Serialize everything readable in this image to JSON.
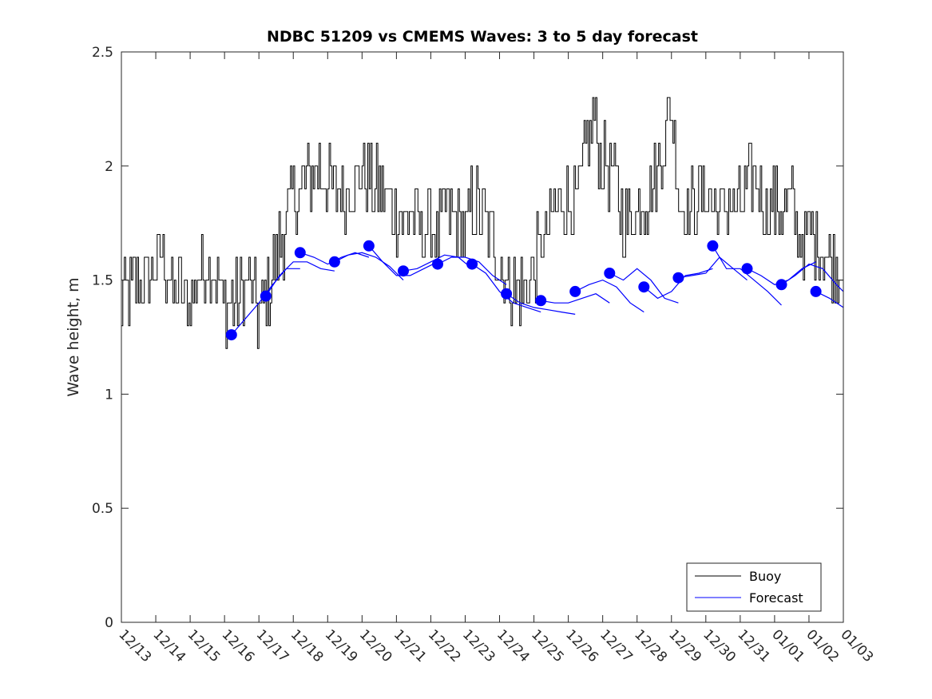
{
  "chart_data": {
    "type": "line",
    "title": "NDBC 51209 vs CMEMS Waves: 3 to 5 day forecast",
    "xlabel": "",
    "ylabel": "Wave height, m",
    "x_tick_labels": [
      "12/13",
      "12/14",
      "12/15",
      "12/16",
      "12/17",
      "12/18",
      "12/19",
      "12/20",
      "12/21",
      "12/22",
      "12/23",
      "12/24",
      "12/25",
      "12/26",
      "12/27",
      "12/28",
      "12/29",
      "12/30",
      "12/31",
      "01/01",
      "01/02",
      "01/03"
    ],
    "xlim": [
      0,
      21
    ],
    "x_units": "days since 12/13",
    "ylim": [
      0,
      2.5
    ],
    "y_ticks": [
      0,
      0.5,
      1,
      1.5,
      2,
      2.5
    ],
    "y_tick_labels": [
      "0",
      "0.5",
      "1",
      "1.5",
      "2",
      "2.5"
    ],
    "legend": {
      "position": "bottom-right",
      "entries": [
        "Buoy",
        "Forecast"
      ]
    },
    "series": [
      {
        "name": "Buoy",
        "color": "#000000",
        "x": [
          0,
          0.25,
          0.5,
          0.75,
          1,
          1.25,
          1.5,
          1.75,
          2,
          2.25,
          2.5,
          2.75,
          3,
          3.25,
          3.5,
          3.75,
          4,
          4.25,
          4.5,
          4.75,
          5,
          5.25,
          5.5,
          5.75,
          6,
          6.25,
          6.5,
          6.75,
          7,
          7.25,
          7.5,
          7.75,
          8,
          8.25,
          8.5,
          8.75,
          9,
          9.25,
          9.5,
          9.75,
          10,
          10.25,
          10.5,
          10.75,
          11,
          11.25,
          11.5,
          11.75,
          12,
          12.25,
          12.5,
          12.75,
          13,
          13.25,
          13.5,
          13.75,
          14,
          14.25,
          14.5,
          14.75,
          15,
          15.25,
          15.5,
          15.75,
          16,
          16.25,
          16.5,
          16.75,
          17,
          17.25,
          17.5,
          17.75,
          18,
          18.25,
          18.5,
          18.75,
          19,
          19.25,
          19.5,
          19.75,
          20,
          20.25,
          20.5,
          20.75,
          21
        ],
        "values": [
          1.4,
          1.45,
          1.5,
          1.5,
          1.55,
          1.6,
          1.45,
          1.45,
          1.4,
          1.5,
          1.6,
          1.55,
          1.4,
          1.4,
          1.45,
          1.5,
          1.35,
          1.4,
          1.6,
          1.7,
          1.85,
          1.9,
          1.95,
          2.0,
          1.95,
          1.85,
          1.9,
          1.9,
          2.0,
          1.95,
          1.9,
          1.85,
          1.8,
          1.75,
          1.8,
          1.7,
          1.75,
          1.7,
          1.8,
          1.75,
          1.7,
          1.85,
          1.8,
          1.7,
          1.6,
          1.5,
          1.45,
          1.45,
          1.55,
          1.65,
          1.75,
          1.85,
          1.85,
          1.8,
          2.05,
          2.2,
          2.0,
          2.0,
          1.85,
          1.75,
          1.8,
          1.85,
          1.9,
          2.05,
          2.3,
          1.9,
          1.8,
          1.85,
          1.9,
          1.85,
          1.8,
          1.85,
          1.8,
          1.9,
          1.95,
          1.8,
          1.85,
          1.8,
          1.85,
          1.7,
          1.65,
          1.7,
          1.6,
          1.55,
          1.6
        ]
      },
      {
        "name": "Forecast",
        "color": "#0000ff",
        "segments": [
          {
            "x": [
              3.2,
              3.6,
              4.0,
              4.4,
              4.8,
              5.2
            ],
            "values": [
              1.26,
              1.33,
              1.4,
              1.48,
              1.55,
              1.55
            ]
          },
          {
            "x": [
              4.2,
              4.6,
              5.0,
              5.4,
              5.8,
              6.2
            ],
            "values": [
              1.43,
              1.52,
              1.58,
              1.58,
              1.55,
              1.54
            ]
          },
          {
            "x": [
              5.2,
              5.6,
              6.0,
              6.4,
              6.8,
              7.2
            ],
            "values": [
              1.62,
              1.6,
              1.57,
              1.6,
              1.62,
              1.6
            ]
          },
          {
            "x": [
              6.2,
              6.6,
              7.0,
              7.4,
              7.8,
              8.2
            ],
            "values": [
              1.58,
              1.61,
              1.62,
              1.6,
              1.56,
              1.5
            ]
          },
          {
            "x": [
              7.2,
              7.6,
              8.0,
              8.4,
              8.8,
              9.2
            ],
            "values": [
              1.65,
              1.58,
              1.52,
              1.52,
              1.55,
              1.58
            ]
          },
          {
            "x": [
              8.2,
              8.6,
              9.0,
              9.4,
              9.8,
              10.2
            ],
            "values": [
              1.54,
              1.55,
              1.58,
              1.61,
              1.6,
              1.55
            ]
          },
          {
            "x": [
              9.2,
              9.6,
              10.0,
              10.4,
              10.8,
              11.2
            ],
            "values": [
              1.57,
              1.6,
              1.6,
              1.58,
              1.52,
              1.48
            ]
          },
          {
            "x": [
              10.2,
              10.6,
              11.0,
              11.4,
              11.8,
              12.2
            ],
            "values": [
              1.57,
              1.53,
              1.45,
              1.4,
              1.38,
              1.36
            ]
          },
          {
            "x": [
              11.2,
              11.6,
              12.0,
              12.4,
              12.8,
              13.2
            ],
            "values": [
              1.44,
              1.4,
              1.38,
              1.37,
              1.36,
              1.35
            ]
          },
          {
            "x": [
              12.2,
              12.6,
              13.0,
              13.4,
              13.8,
              14.2
            ],
            "values": [
              1.41,
              1.4,
              1.4,
              1.42,
              1.44,
              1.4
            ]
          },
          {
            "x": [
              13.2,
              13.6,
              14.0,
              14.4,
              14.8,
              15.2
            ],
            "values": [
              1.45,
              1.48,
              1.5,
              1.47,
              1.4,
              1.36
            ]
          },
          {
            "x": [
              14.2,
              14.6,
              15.0,
              15.4,
              15.8,
              16.2
            ],
            "values": [
              1.53,
              1.5,
              1.55,
              1.5,
              1.42,
              1.4
            ]
          },
          {
            "x": [
              15.2,
              15.6,
              16.0,
              16.4,
              16.8,
              17.2
            ],
            "values": [
              1.47,
              1.42,
              1.45,
              1.52,
              1.53,
              1.55
            ]
          },
          {
            "x": [
              16.2,
              16.6,
              17.0,
              17.4,
              17.8,
              18.2
            ],
            "values": [
              1.51,
              1.52,
              1.53,
              1.6,
              1.55,
              1.5
            ]
          },
          {
            "x": [
              17.2,
              17.6,
              18.0,
              18.4,
              18.8,
              19.2
            ],
            "values": [
              1.65,
              1.55,
              1.55,
              1.5,
              1.45,
              1.39
            ]
          },
          {
            "x": [
              18.2,
              18.6,
              19.0,
              19.4,
              19.8,
              20.2
            ],
            "values": [
              1.55,
              1.52,
              1.48,
              1.5,
              1.55,
              1.58
            ]
          },
          {
            "x": [
              19.2,
              19.6,
              20.0,
              20.4,
              20.8,
              21.0
            ],
            "values": [
              1.48,
              1.52,
              1.57,
              1.55,
              1.48,
              1.45
            ]
          },
          {
            "x": [
              20.2,
              20.6,
              21.0
            ],
            "values": [
              1.45,
              1.42,
              1.38
            ]
          }
        ],
        "markers": {
          "x": [
            3.2,
            4.2,
            5.2,
            6.2,
            7.2,
            8.2,
            9.2,
            10.2,
            11.2,
            12.2,
            13.2,
            14.2,
            15.2,
            16.2,
            17.2,
            18.2,
            19.2,
            20.2
          ],
          "values": [
            1.26,
            1.43,
            1.62,
            1.58,
            1.65,
            1.54,
            1.57,
            1.57,
            1.44,
            1.41,
            1.45,
            1.53,
            1.47,
            1.51,
            1.65,
            1.55,
            1.48,
            1.45
          ]
        }
      }
    ]
  }
}
